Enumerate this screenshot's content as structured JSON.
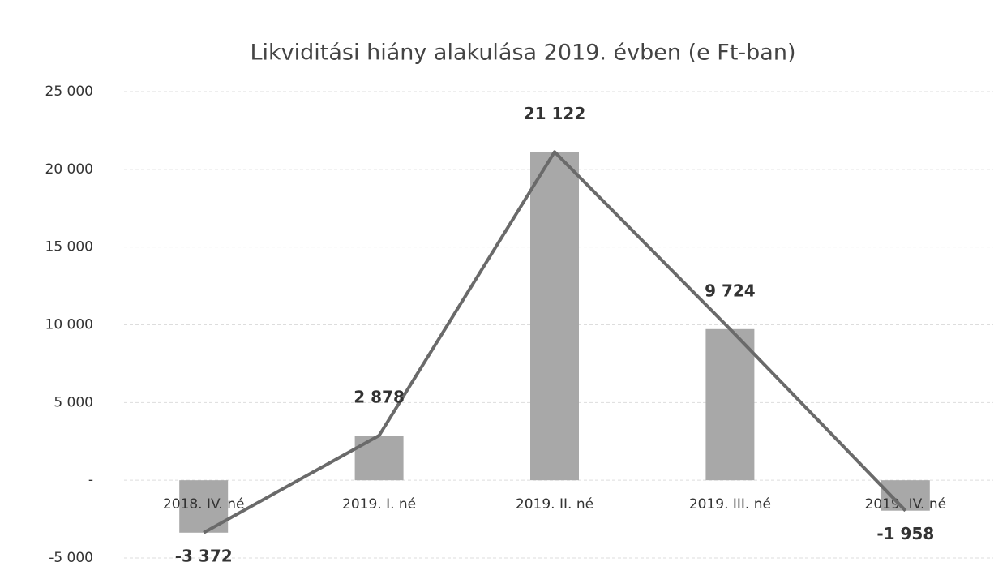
{
  "chart_data": {
    "type": "bar",
    "title": "Likviditási hiány alakulása 2019. évben (e Ft-ban)",
    "categories": [
      "2018. IV. né",
      "2019. I. né",
      "2019. II. né",
      "2019. III. né",
      "2019. IV. né"
    ],
    "values": [
      -3372,
      2878,
      21122,
      9724,
      -1958
    ],
    "value_labels": [
      "-3 372",
      "2 878",
      "21 122",
      "9 724",
      "-1 958"
    ],
    "color": "#a8a8a8",
    "line_color": "#6a6a6a",
    "line": true,
    "ylim": [
      -5000,
      25000
    ],
    "yticks": [
      {
        "value": -5000,
        "label": "-5 000"
      },
      {
        "value": 0,
        "label": "-"
      },
      {
        "value": 5000,
        "label": "5 000"
      },
      {
        "value": 10000,
        "label": "10 000"
      },
      {
        "value": 15000,
        "label": "15 000"
      },
      {
        "value": 20000,
        "label": "20 000"
      },
      {
        "value": 25000,
        "label": "25 000"
      }
    ],
    "grid": true
  }
}
